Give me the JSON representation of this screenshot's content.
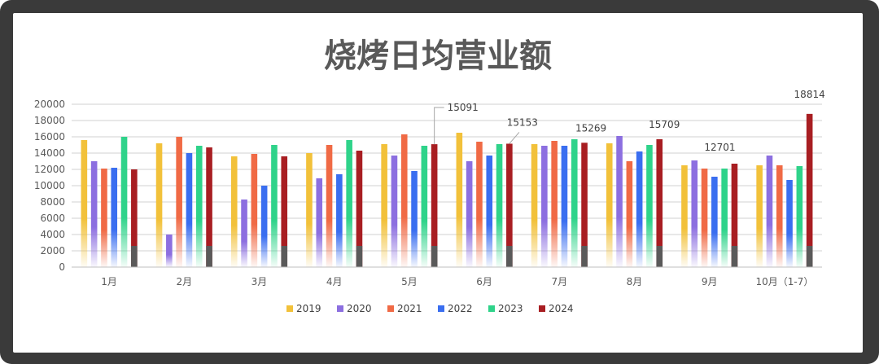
{
  "chart_data": {
    "type": "bar",
    "title": "烧烤日均营业额",
    "xlabel": "",
    "ylabel": "",
    "ylim": [
      0,
      20000
    ],
    "yticks": [
      0,
      2000,
      4000,
      6000,
      8000,
      10000,
      12000,
      14000,
      16000,
      18000,
      20000
    ],
    "grid": true,
    "legend": "bottom",
    "categories": [
      "1月",
      "2月",
      "3月",
      "4月",
      "5月",
      "6月",
      "7月",
      "8月",
      "9月",
      "10月（1-7）"
    ],
    "series": [
      {
        "name": "2019",
        "color": "#f2c13a",
        "values": [
          15600,
          15200,
          13600,
          14000,
          15100,
          16500,
          15100,
          15200,
          12500,
          12500
        ]
      },
      {
        "name": "2020",
        "color": "#8c6fe0",
        "values": [
          13000,
          4000,
          8300,
          10900,
          13700,
          13000,
          14900,
          16100,
          13100,
          13700
        ]
      },
      {
        "name": "2021",
        "color": "#f06a45",
        "values": [
          12100,
          16000,
          13900,
          15000,
          16300,
          15400,
          15500,
          13000,
          12100,
          12500
        ]
      },
      {
        "name": "2022",
        "color": "#3a6ef0",
        "values": [
          12200,
          14000,
          10000,
          11400,
          11800,
          13700,
          14900,
          14200,
          11100,
          10700
        ]
      },
      {
        "name": "2023",
        "color": "#2fd38a",
        "values": [
          16000,
          14900,
          15000,
          15600,
          14900,
          15100,
          15700,
          15000,
          12100,
          12400
        ]
      },
      {
        "name": "2024",
        "color": "#a81e22",
        "values": [
          12000,
          14700,
          13600,
          14300,
          15091,
          15153,
          15269,
          15709,
          12701,
          18814
        ]
      }
    ],
    "data_labels": [
      {
        "category": "5月",
        "series": "2024",
        "text": "15091"
      },
      {
        "category": "6月",
        "series": "2024",
        "text": "15153"
      },
      {
        "category": "7月",
        "series": "2024",
        "text": "15269"
      },
      {
        "category": "8月",
        "series": "2024",
        "text": "15709"
      },
      {
        "category": "9月",
        "series": "2024",
        "text": "12701"
      },
      {
        "category": "10月（1-7）",
        "series": "2024",
        "text": "18814"
      }
    ]
  }
}
